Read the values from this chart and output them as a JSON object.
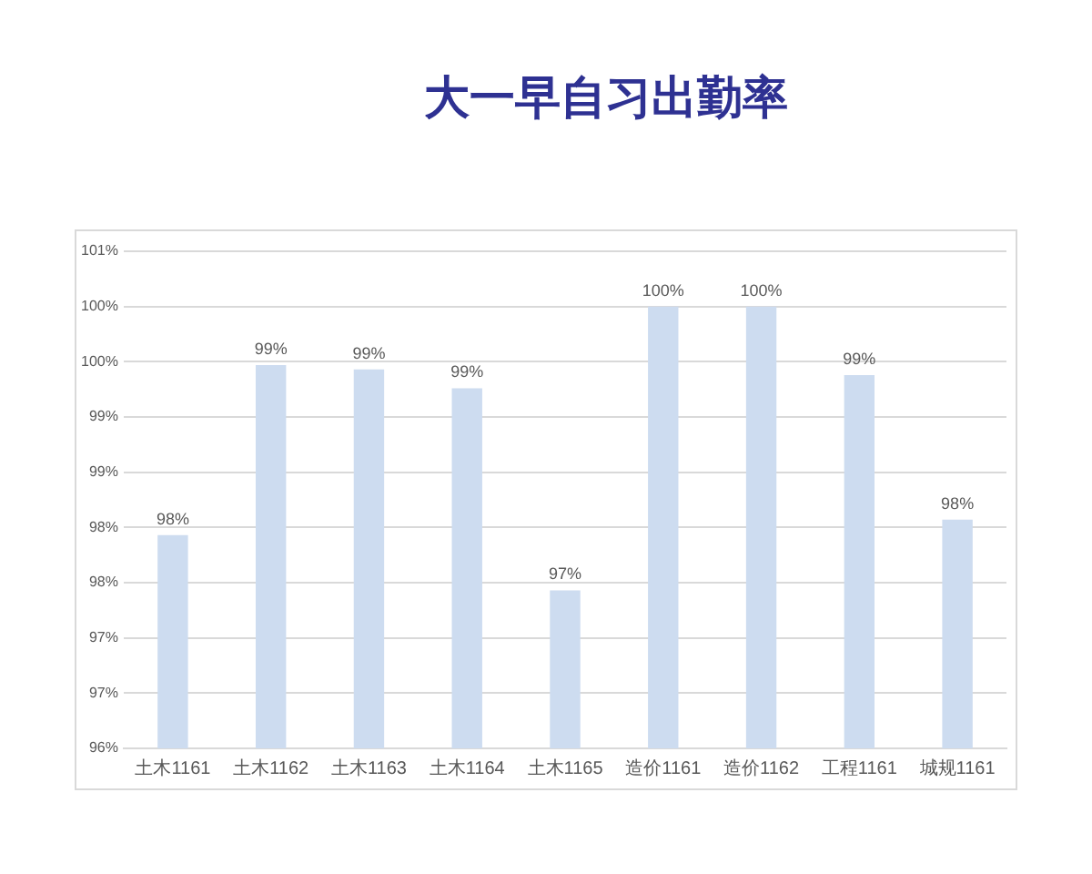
{
  "chart_data": {
    "type": "bar",
    "title": "大一早自习出勤率",
    "categories": [
      "土木1161",
      "土木1162",
      "土木1163",
      "土木1164",
      "土木1165",
      "造价1161",
      "造价1162",
      "工程1161",
      "城规1161"
    ],
    "values": [
      97.93,
      99.47,
      99.43,
      99.26,
      97.43,
      100,
      100,
      99.38,
      98.07
    ],
    "color": "#cddcf0",
    "value_labels": [
      "98%",
      "99%",
      "99%",
      "99%",
      "97%",
      "100%",
      "100%",
      "99%",
      "98%"
    ],
    "ylim": [
      96,
      100.5
    ],
    "yticks": [
      {
        "value": 96,
        "label": "96%"
      },
      {
        "value": 96.5,
        "label": "97%"
      },
      {
        "value": 97,
        "label": "97%"
      },
      {
        "value": 97.5,
        "label": "98%"
      },
      {
        "value": 98,
        "label": "98%"
      },
      {
        "value": 98.5,
        "label": "99%"
      },
      {
        "value": 99,
        "label": "99%"
      },
      {
        "value": 99.5,
        "label": "100%"
      },
      {
        "value": 100,
        "label": "100%"
      },
      {
        "value": 100.5,
        "label": "101%"
      }
    ],
    "grid": "y",
    "legend": false
  }
}
